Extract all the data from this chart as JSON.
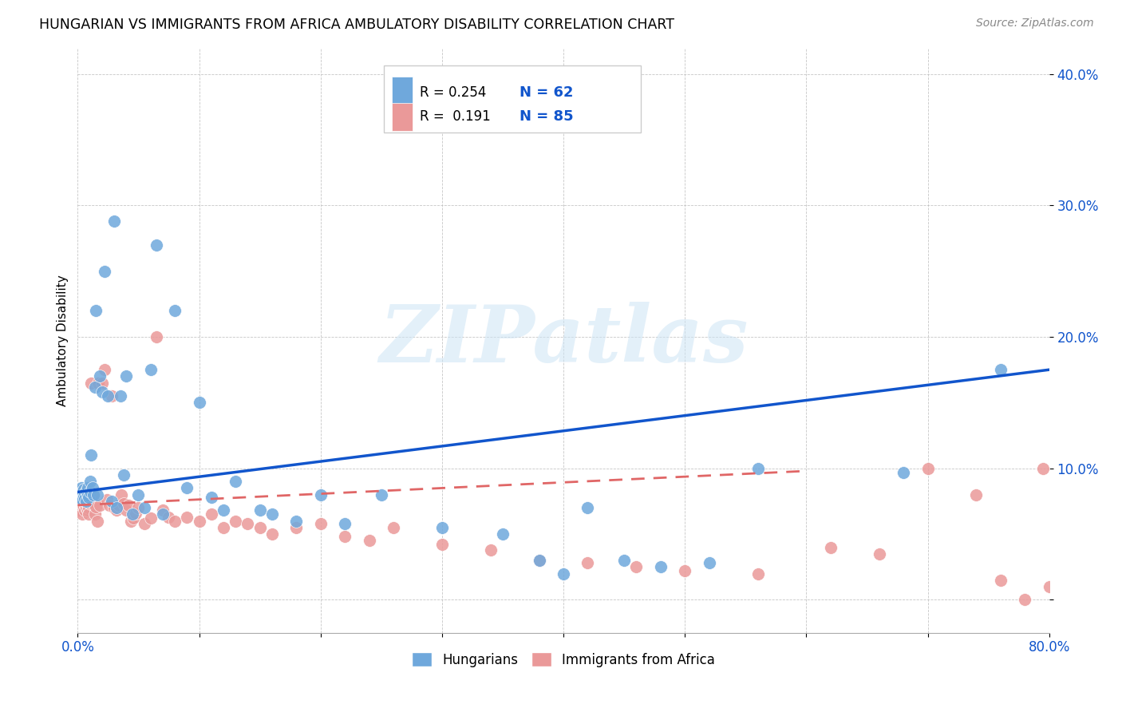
{
  "title": "HUNGARIAN VS IMMIGRANTS FROM AFRICA AMBULATORY DISABILITY CORRELATION CHART",
  "source": "Source: ZipAtlas.com",
  "ylabel": "Ambulatory Disability",
  "xlim": [
    0.0,
    0.8
  ],
  "ylim": [
    -0.025,
    0.42
  ],
  "y_ticks": [
    0.0,
    0.1,
    0.2,
    0.3,
    0.4
  ],
  "y_tick_labels": [
    "",
    "10.0%",
    "20.0%",
    "30.0%",
    "40.0%"
  ],
  "hungarian_color": "#6fa8dc",
  "african_color": "#ea9999",
  "hungarian_line_color": "#1155cc",
  "african_line_color": "#e06666",
  "watermark": "ZIPatlas",
  "hungarian_x": [
    0.001,
    0.002,
    0.003,
    0.003,
    0.004,
    0.004,
    0.005,
    0.005,
    0.006,
    0.006,
    0.007,
    0.007,
    0.008,
    0.008,
    0.009,
    0.01,
    0.01,
    0.011,
    0.012,
    0.013,
    0.014,
    0.015,
    0.016,
    0.018,
    0.02,
    0.022,
    0.025,
    0.028,
    0.03,
    0.032,
    0.035,
    0.038,
    0.04,
    0.045,
    0.05,
    0.055,
    0.06,
    0.065,
    0.07,
    0.08,
    0.09,
    0.1,
    0.11,
    0.12,
    0.13,
    0.15,
    0.16,
    0.18,
    0.2,
    0.22,
    0.25,
    0.3,
    0.35,
    0.38,
    0.4,
    0.42,
    0.45,
    0.48,
    0.52,
    0.56,
    0.68,
    0.76
  ],
  "hungarian_y": [
    0.083,
    0.078,
    0.085,
    0.08,
    0.082,
    0.076,
    0.084,
    0.079,
    0.081,
    0.077,
    0.083,
    0.075,
    0.08,
    0.085,
    0.078,
    0.082,
    0.09,
    0.11,
    0.085,
    0.08,
    0.162,
    0.22,
    0.08,
    0.17,
    0.158,
    0.25,
    0.155,
    0.075,
    0.288,
    0.07,
    0.155,
    0.095,
    0.17,
    0.065,
    0.08,
    0.07,
    0.175,
    0.27,
    0.065,
    0.22,
    0.085,
    0.15,
    0.078,
    0.068,
    0.09,
    0.068,
    0.065,
    0.06,
    0.08,
    0.058,
    0.08,
    0.055,
    0.05,
    0.03,
    0.02,
    0.07,
    0.03,
    0.025,
    0.028,
    0.1,
    0.097,
    0.175
  ],
  "african_x": [
    0.001,
    0.002,
    0.002,
    0.003,
    0.003,
    0.004,
    0.004,
    0.005,
    0.005,
    0.006,
    0.006,
    0.007,
    0.007,
    0.008,
    0.008,
    0.009,
    0.009,
    0.01,
    0.01,
    0.011,
    0.012,
    0.013,
    0.014,
    0.015,
    0.016,
    0.017,
    0.018,
    0.02,
    0.022,
    0.024,
    0.026,
    0.028,
    0.03,
    0.032,
    0.034,
    0.036,
    0.038,
    0.04,
    0.042,
    0.044,
    0.046,
    0.048,
    0.05,
    0.055,
    0.06,
    0.065,
    0.07,
    0.075,
    0.08,
    0.09,
    0.1,
    0.11,
    0.12,
    0.13,
    0.14,
    0.15,
    0.16,
    0.18,
    0.2,
    0.22,
    0.24,
    0.26,
    0.3,
    0.34,
    0.38,
    0.42,
    0.46,
    0.5,
    0.56,
    0.62,
    0.66,
    0.7,
    0.74,
    0.76,
    0.78,
    0.795,
    0.8
  ],
  "african_y": [
    0.075,
    0.072,
    0.068,
    0.082,
    0.073,
    0.079,
    0.065,
    0.071,
    0.076,
    0.068,
    0.073,
    0.07,
    0.074,
    0.068,
    0.075,
    0.07,
    0.065,
    0.073,
    0.079,
    0.165,
    0.073,
    0.08,
    0.065,
    0.071,
    0.06,
    0.165,
    0.072,
    0.165,
    0.175,
    0.076,
    0.072,
    0.155,
    0.07,
    0.068,
    0.072,
    0.08,
    0.073,
    0.068,
    0.072,
    0.06,
    0.062,
    0.066,
    0.07,
    0.058,
    0.062,
    0.2,
    0.068,
    0.063,
    0.06,
    0.063,
    0.06,
    0.065,
    0.055,
    0.06,
    0.058,
    0.055,
    0.05,
    0.055,
    0.058,
    0.048,
    0.045,
    0.055,
    0.042,
    0.038,
    0.03,
    0.028,
    0.025,
    0.022,
    0.02,
    0.04,
    0.035,
    0.1,
    0.08,
    0.015,
    0.0,
    0.1,
    0.01
  ]
}
